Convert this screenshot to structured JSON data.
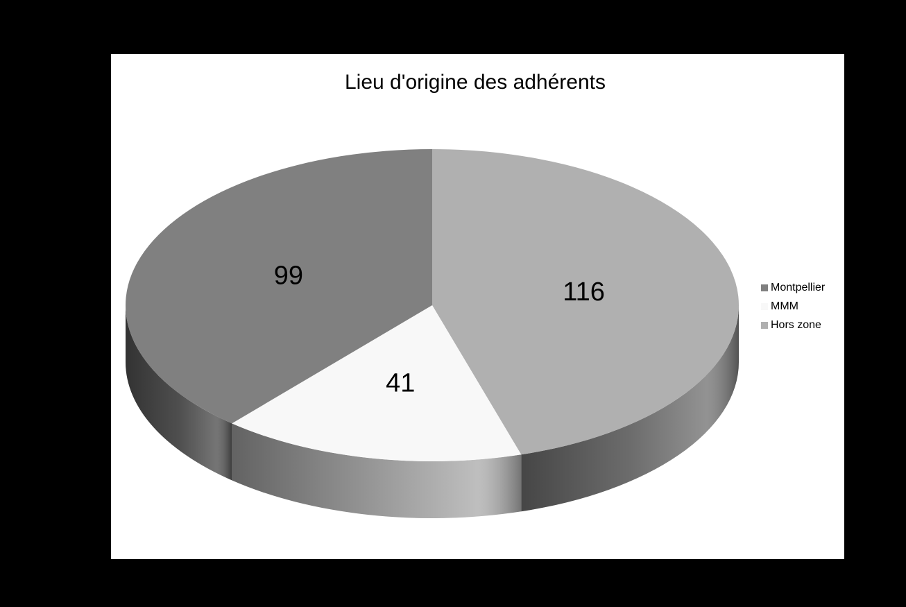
{
  "chart_data": {
    "type": "pie",
    "title": "Lieu d'origine des adhérents",
    "categories": [
      "Montpellier",
      "MMM",
      "Hors zone"
    ],
    "values": [
      99,
      41,
      116
    ],
    "colors": [
      "#808080",
      "#f8f8f8",
      "#b0b0b0"
    ],
    "three_d": true,
    "legend": "right"
  }
}
